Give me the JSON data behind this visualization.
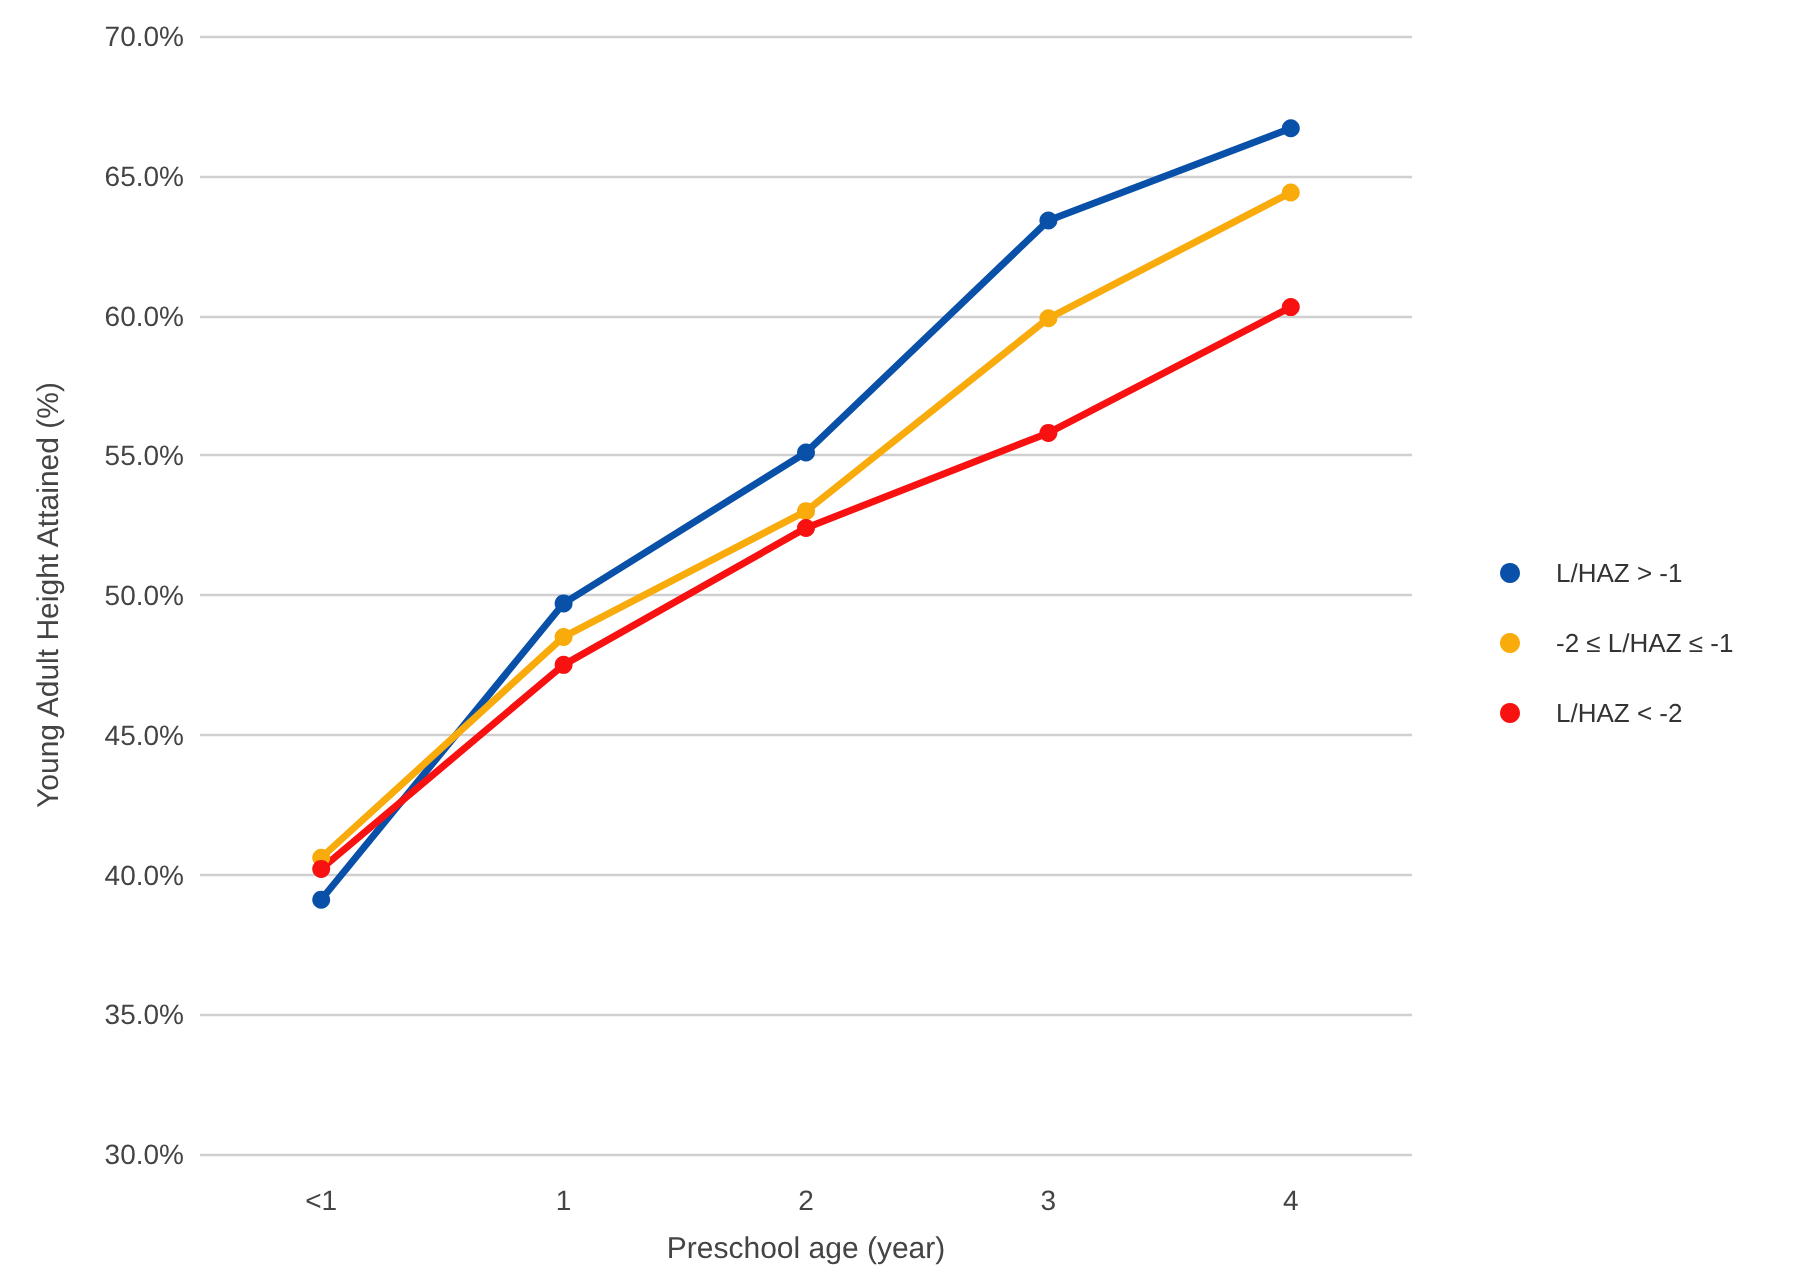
{
  "chart_data": {
    "type": "line",
    "xlabel": "Preschool age (year)",
    "ylabel": "Young Adult Height Attained (%)",
    "categories": [
      "<1",
      "1",
      "2",
      "3",
      "4"
    ],
    "series": [
      {
        "name": "L/HAZ > -1",
        "color": "#0950a8",
        "values": [
          39.1,
          49.7,
          55.1,
          63.4,
          66.7
        ]
      },
      {
        "name": "-2 ≤ L/HAZ ≤ -1",
        "color": "#f8ab0a",
        "values": [
          40.6,
          48.5,
          53.0,
          59.9,
          64.4
        ]
      },
      {
        "name": "L/HAZ < -2",
        "color": "#f81111",
        "values": [
          40.2,
          47.5,
          52.4,
          55.8,
          60.3
        ]
      }
    ],
    "ylim": [
      30,
      70
    ],
    "yticks": [
      {
        "value": 30,
        "label": "30.0%"
      },
      {
        "value": 35,
        "label": "35.0%"
      },
      {
        "value": 40,
        "label": "40.0%"
      },
      {
        "value": 45,
        "label": "45.0%"
      },
      {
        "value": 50,
        "label": "50.0%"
      },
      {
        "value": 55,
        "label": "55.0%"
      },
      {
        "value": 60,
        "label": "60.0%"
      },
      {
        "value": 65,
        "label": "65.0%"
      },
      {
        "value": 70,
        "label": "70.0%"
      }
    ],
    "grid": "y",
    "legend": "right",
    "marker": "circle",
    "line_style": "solid"
  }
}
